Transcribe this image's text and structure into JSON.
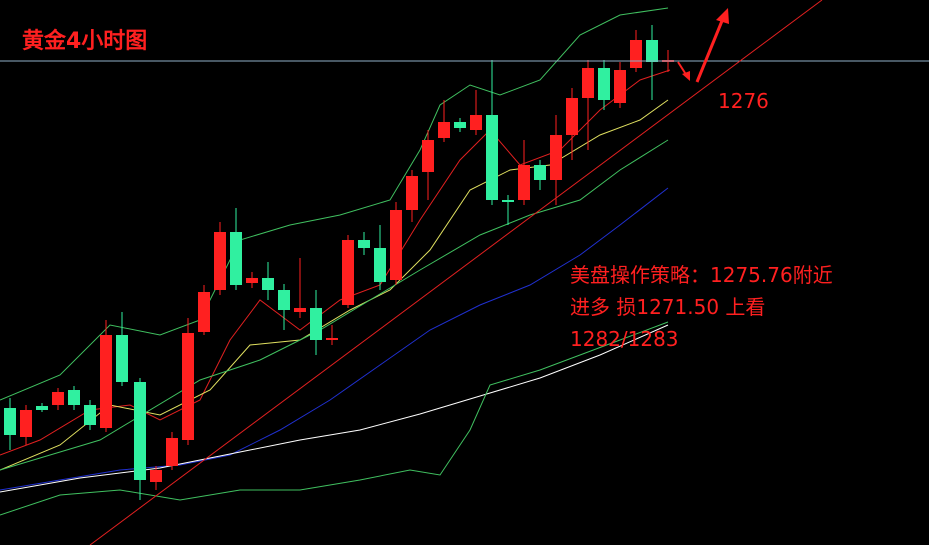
{
  "header": {
    "title": "黄金4小时图"
  },
  "annotations": {
    "level": "1276",
    "strategy": [
      "美盘操作策略：1275.76附近",
      "进多  损1271.50  上看",
      "1282/1283"
    ]
  }
}
